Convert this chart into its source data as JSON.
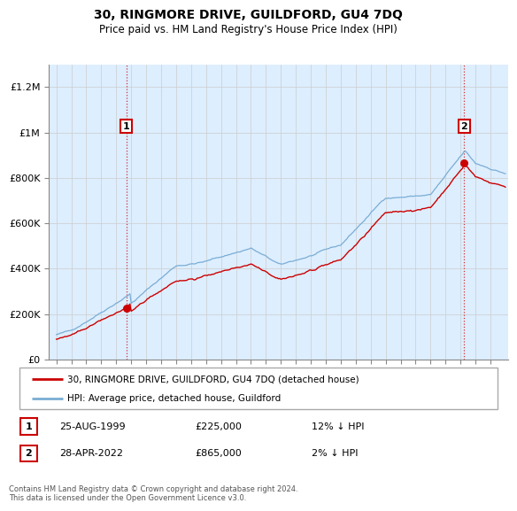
{
  "title": "30, RINGMORE DRIVE, GUILDFORD, GU4 7DQ",
  "subtitle": "Price paid vs. HM Land Registry's House Price Index (HPI)",
  "property_label": "30, RINGMORE DRIVE, GUILDFORD, GU4 7DQ (detached house)",
  "hpi_label": "HPI: Average price, detached house, Guildford",
  "sale1_date": "25-AUG-1999",
  "sale1_price": "£225,000",
  "sale1_note": "12% ↓ HPI",
  "sale2_date": "28-APR-2022",
  "sale2_price": "£865,000",
  "sale2_note": "2% ↓ HPI",
  "footer": "Contains HM Land Registry data © Crown copyright and database right 2024.\nThis data is licensed under the Open Government Licence v3.0.",
  "property_color": "#cc0000",
  "hpi_color": "#7aadd4",
  "bg_color": "#ddeeff",
  "sale_marker_color": "#cc0000",
  "ylim": [
    0,
    1300000
  ],
  "yticks": [
    0,
    200000,
    400000,
    600000,
    800000,
    1000000,
    1200000
  ],
  "ytick_labels": [
    "£0",
    "£200K",
    "£400K",
    "£600K",
    "£800K",
    "£1M",
    "£1.2M"
  ],
  "sale1_year": 1999.64,
  "sale1_val": 225000,
  "sale2_year": 2022.29,
  "sale2_val": 865000,
  "xmin": 1994.5,
  "xmax": 2025.2
}
